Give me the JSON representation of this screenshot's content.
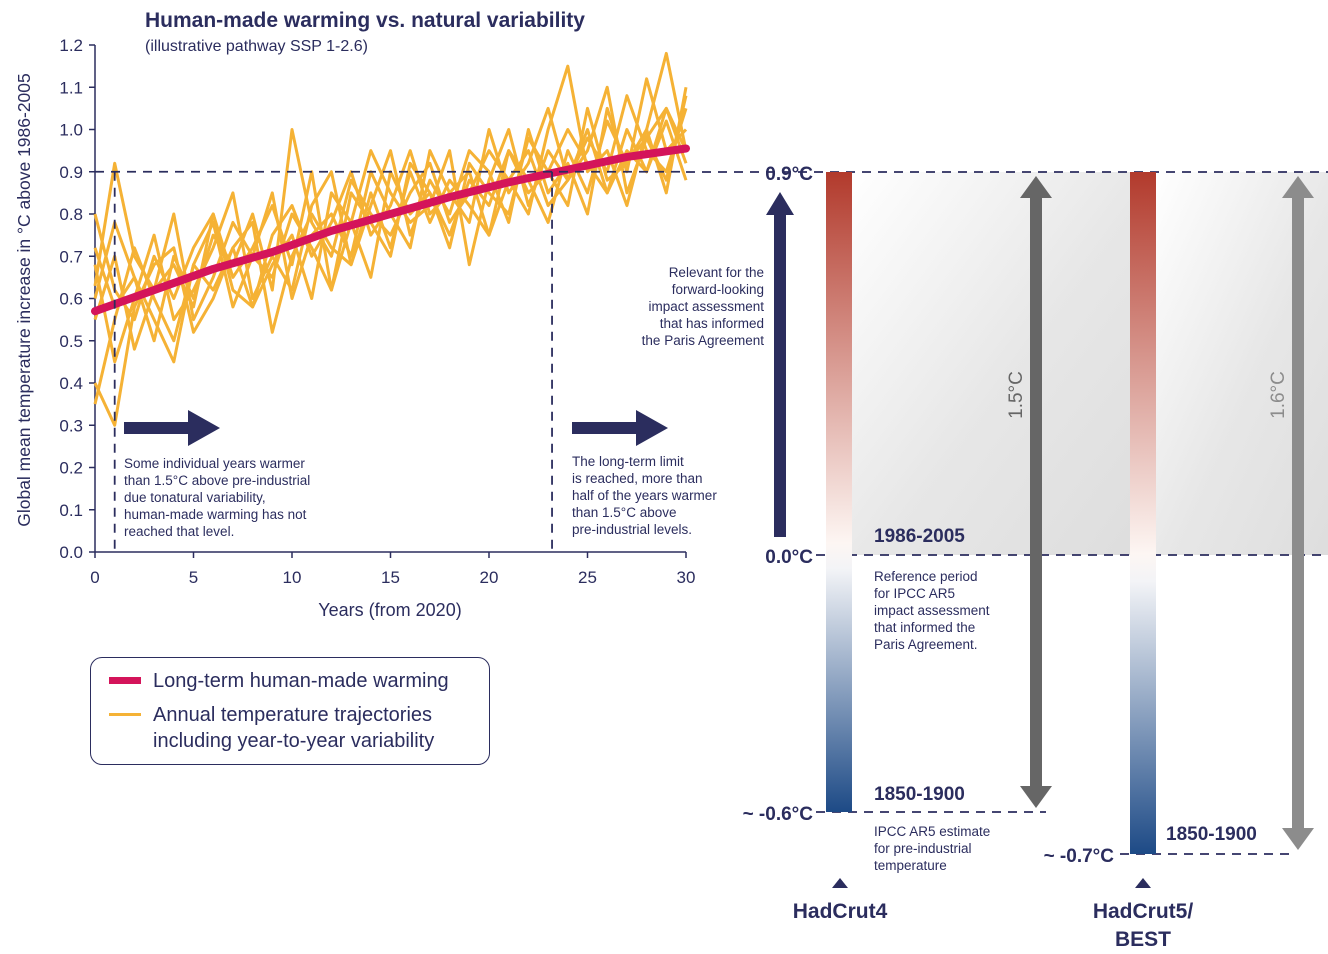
{
  "title": "Human-made warming vs. natural variability",
  "subtitle": "(illustrative pathway SSP 1-2.6)",
  "colors": {
    "navy": "#2b2d5e",
    "trend": "#d4145a",
    "trajectory": "#f5b235",
    "warm": "#b23a2c",
    "cool": "#1d4a86",
    "grey_arrow_dark": "#666666",
    "grey_arrow_light": "#8c8c8c"
  },
  "chart_data": {
    "type": "line",
    "xlabel": "Years (from 2020)",
    "ylabel": "Global mean temperature increase in °C above 1986-2005",
    "xlim": [
      0,
      30
    ],
    "ylim": [
      0,
      1.2
    ],
    "x_ticks": [
      "0",
      "5",
      "10",
      "15",
      "20",
      "25",
      "30"
    ],
    "y_ticks": [
      "0.0",
      "0.1",
      "0.2",
      "0.3",
      "0.4",
      "0.5",
      "0.6",
      "0.7",
      "0.8",
      "0.9",
      "1.0",
      "1.1",
      "1.2"
    ],
    "reference_line_y": 0.9,
    "marker_years": [
      1,
      23.2
    ],
    "trend": {
      "name": "Long-term human-made warming",
      "x": [
        0,
        3,
        6,
        9,
        12,
        15,
        18,
        21,
        24,
        27,
        30
      ],
      "y": [
        0.57,
        0.62,
        0.67,
        0.71,
        0.76,
        0.8,
        0.84,
        0.875,
        0.905,
        0.935,
        0.955
      ]
    },
    "trajectories": [
      [
        0.8,
        0.62,
        0.55,
        0.7,
        0.6,
        0.72,
        0.8,
        0.62,
        0.58,
        0.75,
        0.82,
        0.7,
        0.78,
        0.9,
        0.75,
        0.82,
        0.95,
        0.8,
        0.85,
        0.9,
        0.75,
        0.88,
        0.95,
        0.82,
        0.88,
        1.0,
        0.85,
        0.95,
        0.9,
        1.05,
        0.92
      ],
      [
        0.35,
        0.55,
        0.72,
        0.6,
        0.5,
        0.68,
        0.78,
        0.58,
        0.7,
        0.65,
        0.8,
        0.72,
        0.62,
        0.85,
        0.78,
        0.7,
        0.92,
        0.85,
        0.75,
        0.88,
        0.82,
        0.95,
        0.88,
        0.78,
        0.95,
        0.85,
        1.02,
        0.92,
        0.98,
        0.88,
        1.08
      ],
      [
        0.68,
        0.45,
        0.6,
        0.75,
        0.55,
        0.62,
        0.72,
        0.85,
        0.6,
        0.7,
        0.62,
        0.82,
        0.9,
        0.68,
        0.82,
        0.95,
        0.75,
        0.88,
        0.8,
        0.95,
        0.9,
        0.78,
        1.0,
        0.85,
        0.92,
        0.8,
        1.05,
        0.9,
        1.12,
        0.95,
        1.0
      ],
      [
        0.55,
        0.7,
        0.48,
        0.62,
        0.8,
        0.55,
        0.65,
        0.78,
        0.7,
        0.85,
        0.6,
        0.75,
        0.8,
        0.7,
        0.9,
        0.8,
        0.72,
        0.95,
        0.85,
        0.78,
        1.0,
        0.85,
        0.92,
        1.05,
        0.88,
        0.98,
        0.9,
        1.08,
        0.95,
        0.9,
        1.05
      ],
      [
        0.72,
        0.58,
        0.65,
        0.5,
        0.7,
        0.6,
        0.75,
        0.68,
        0.8,
        0.62,
        1.0,
        0.78,
        0.7,
        0.88,
        0.8,
        0.75,
        0.85,
        0.92,
        0.78,
        0.85,
        0.95,
        0.88,
        0.8,
        1.0,
        1.15,
        0.9,
        0.95,
        0.82,
        1.0,
        1.18,
        0.95
      ],
      [
        0.4,
        0.3,
        0.58,
        0.68,
        0.72,
        0.52,
        0.6,
        0.72,
        0.58,
        0.68,
        0.75,
        0.6,
        0.85,
        0.78,
        0.65,
        0.9,
        0.8,
        0.85,
        0.72,
        0.92,
        0.85,
        0.8,
        0.98,
        0.9,
        0.82,
        1.05,
        0.88,
        0.92,
        1.0,
        0.85,
        1.1
      ],
      [
        0.6,
        0.78,
        0.65,
        0.55,
        0.45,
        0.68,
        0.62,
        0.72,
        0.78,
        0.52,
        0.7,
        0.8,
        0.72,
        0.68,
        0.85,
        0.72,
        0.9,
        0.78,
        0.88,
        0.82,
        0.75,
        0.95,
        0.85,
        0.9,
        1.0,
        0.92,
        0.85,
        1.0,
        0.9,
        1.02,
        0.88
      ],
      [
        0.63,
        0.92,
        0.7,
        0.62,
        0.68,
        0.58,
        0.8,
        0.65,
        0.72,
        0.82,
        0.68,
        0.9,
        0.62,
        0.78,
        0.95,
        0.85,
        0.78,
        0.82,
        0.95,
        0.68,
        0.88,
        1.0,
        0.82,
        0.95,
        0.88,
        0.95,
        1.1,
        0.85,
        0.98,
        1.05,
        0.95
      ]
    ]
  },
  "annotations": {
    "left_note": [
      "Some individual years warmer",
      "than 1.5°C above pre-industrial",
      "due tonatural variability,",
      "human-made warming has not",
      "reached that level."
    ],
    "right_note": [
      "The long-term limit",
      "is reached, more than",
      "half of the years warmer",
      "than 1.5°C above",
      "pre-industrial levels."
    ],
    "relevance_note": [
      "Relevant for the",
      "forward-looking",
      "impact assessment",
      "that has informed",
      "the Paris Agreement"
    ],
    "reference_note": [
      "Reference period",
      "for IPCC AR5",
      "impact assessment",
      "that informed the",
      "Paris Agreement."
    ],
    "estimate_note": [
      "IPCC AR5 estimate",
      "for pre-industrial",
      "temperature"
    ]
  },
  "baseline": {
    "level_top": "0.9°C",
    "level_zero": "0.0°C",
    "level_h4": "~ -0.6°C",
    "level_h5": "~ -0.7°C",
    "period_ref": "1986-2005",
    "period_h4": "1850-1900",
    "period_h5": "1850-1900",
    "span_h4": "1.5°C",
    "span_h5": "1.6°C",
    "dataset_h4": "HadCrut4",
    "dataset_h5_line1": "HadCrut5/",
    "dataset_h5_line2": "BEST"
  },
  "legend": [
    {
      "label": "Long-term human-made warming",
      "color": "#d4145a"
    },
    {
      "label": "Annual temperature trajectories",
      "label2": "including year-to-year variability",
      "color": "#f5b235"
    }
  ]
}
